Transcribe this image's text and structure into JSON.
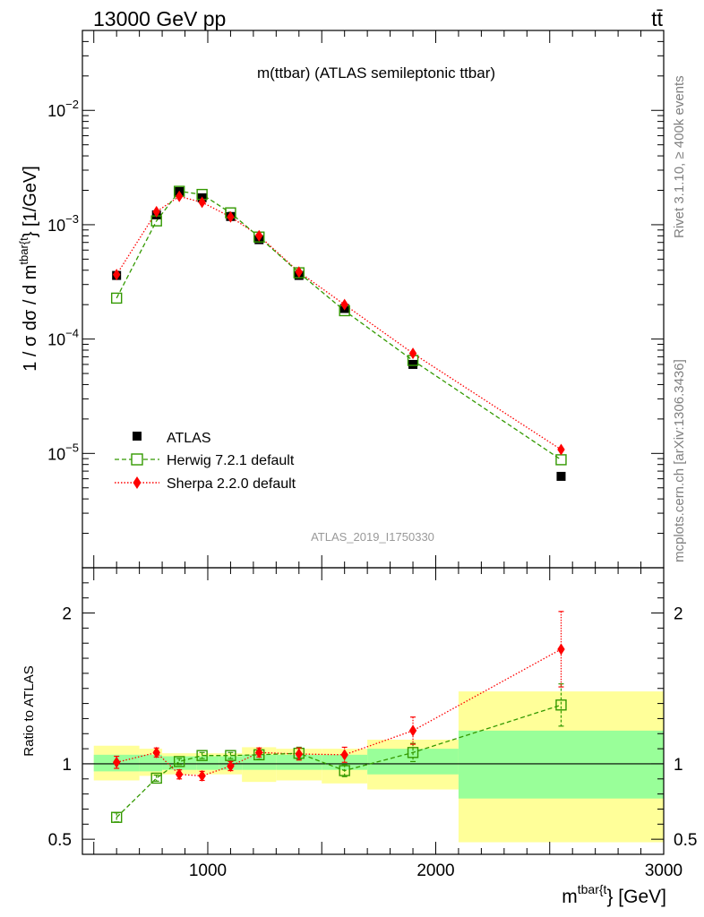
{
  "header": {
    "left": "13000 GeV pp",
    "right": "tt̄"
  },
  "side_text": {
    "rivet": "Rivet 3.1.10, ≥ 400k events",
    "mcplots": "mcplots.cern.ch [arXiv:1306.3436]"
  },
  "colors": {
    "atlas": "#000000",
    "herwig": "#339900",
    "sherpa": "#ff0000",
    "band_inner": "#99ff99",
    "band_outer": "#ffff99",
    "watermark": "#999999"
  },
  "chart_data": [
    {
      "type": "scatter",
      "title": "m(ttbar) (ATLAS semileptonic ttbar)",
      "analysis_label": "ATLAS_2019_I1750330",
      "ylabel_parts": {
        "main": "1 / σ dσ / d m",
        "sup": "tbar{t",
        "end": "} [1/GeV]"
      },
      "yscale": "log",
      "ylim": [
        1e-06,
        0.05
      ],
      "xlim": [
        450,
        3000
      ],
      "yticks": [
        {
          "value": 0.01,
          "base": "10",
          "exp": "−2"
        },
        {
          "value": 0.001,
          "base": "10",
          "exp": "−3"
        },
        {
          "value": 0.0001,
          "base": "10",
          "exp": "−4"
        },
        {
          "value": 1e-05,
          "base": "10",
          "exp": "−5"
        }
      ],
      "legend_position": "lower-left",
      "x": [
        600,
        775,
        875,
        975,
        1100,
        1225,
        1400,
        1600,
        1900,
        2550
      ],
      "series": [
        {
          "name": "ATLAS",
          "marker": "square",
          "values": [
            0.00036,
            0.00122,
            0.00195,
            0.00172,
            0.00118,
            0.00074,
            0.00036,
            0.000185,
            6e-05,
            6.3e-06
          ]
        },
        {
          "name": "Herwig 7.2.1 default",
          "marker": "open-square",
          "line": "dashed",
          "values": [
            0.000228,
            0.00108,
            0.00196,
            0.00184,
            0.00127,
            0.00078,
            0.00038,
            0.000177,
            6.5e-05,
            8.8e-06
          ]
        },
        {
          "name": "Sherpa 2.2.0 default",
          "marker": "diamond",
          "line": "dotted",
          "values": [
            0.000366,
            0.0013,
            0.00177,
            0.00157,
            0.00117,
            0.0008,
            0.000386,
            0.0002,
            7.5e-05,
            1.08e-05
          ]
        }
      ]
    },
    {
      "type": "scatter",
      "ylabel": "Ratio to ATLAS",
      "xlabel_parts": {
        "main": "m",
        "sup": "tbar{t",
        "end": "} [GeV]"
      },
      "ylim": [
        0.4,
        2.3
      ],
      "xlim": [
        450,
        3000
      ],
      "xticks": [
        1000,
        2000,
        3000
      ],
      "yticks": [
        0.5,
        1,
        2
      ],
      "bins": [
        {
          "lo": 500,
          "hi": 700,
          "inner": [
            0.95,
            1.06
          ],
          "outer": [
            0.89,
            1.12
          ]
        },
        {
          "lo": 700,
          "hi": 800,
          "inner": [
            0.95,
            1.06
          ],
          "outer": [
            0.92,
            1.1
          ]
        },
        {
          "lo": 800,
          "hi": 950,
          "inner": [
            0.96,
            1.05
          ],
          "outer": [
            0.93,
            1.07
          ]
        },
        {
          "lo": 950,
          "hi": 1050,
          "inner": [
            0.96,
            1.05
          ],
          "outer": [
            0.93,
            1.07
          ]
        },
        {
          "lo": 1050,
          "hi": 1150,
          "inner": [
            0.96,
            1.05
          ],
          "outer": [
            0.93,
            1.07
          ]
        },
        {
          "lo": 1150,
          "hi": 1300,
          "inner": [
            0.96,
            1.06
          ],
          "outer": [
            0.88,
            1.11
          ]
        },
        {
          "lo": 1300,
          "hi": 1500,
          "inner": [
            0.96,
            1.06
          ],
          "outer": [
            0.89,
            1.1
          ]
        },
        {
          "lo": 1500,
          "hi": 1700,
          "inner": [
            0.96,
            1.06
          ],
          "outer": [
            0.87,
            1.1
          ]
        },
        {
          "lo": 1700,
          "hi": 2100,
          "inner": [
            0.93,
            1.1
          ],
          "outer": [
            0.83,
            1.16
          ]
        },
        {
          "lo": 2100,
          "hi": 3000,
          "inner": [
            0.77,
            1.22
          ],
          "outer": [
            0.48,
            1.48
          ]
        }
      ],
      "series": [
        {
          "name": "Herwig 7.2.1 default",
          "values": [
            0.645,
            0.905,
            1.015,
            1.055,
            1.055,
            1.06,
            1.07,
            0.955,
            1.075,
            1.39
          ],
          "err": [
            0.03,
            0.02,
            0.02,
            0.02,
            0.02,
            0.03,
            0.04,
            0.04,
            0.06,
            0.14
          ]
        },
        {
          "name": "Sherpa 2.2.0 default",
          "values": [
            1.01,
            1.075,
            0.93,
            0.92,
            0.985,
            1.075,
            1.065,
            1.06,
            1.22,
            1.76
          ],
          "err": [
            0.04,
            0.03,
            0.03,
            0.03,
            0.03,
            0.03,
            0.04,
            0.05,
            0.09,
            0.25
          ]
        }
      ]
    }
  ]
}
